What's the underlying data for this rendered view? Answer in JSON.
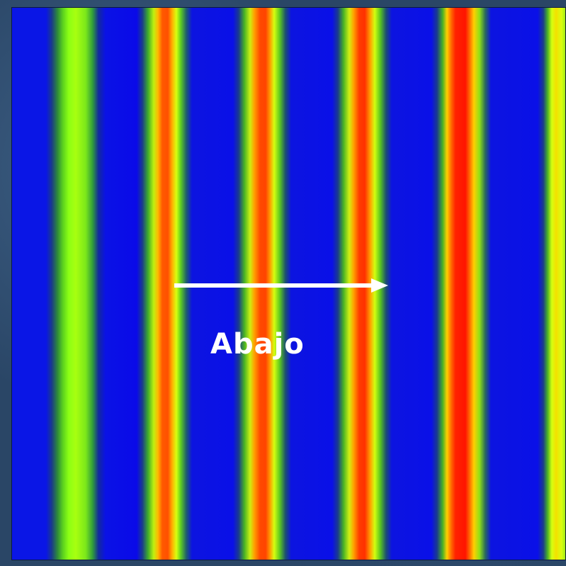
{
  "image": {
    "description_colors": {
      "background_frame": "#2a4666",
      "low": "#0a12e6",
      "mid_low": "#2e8a3a",
      "mid": "#8cff14",
      "mid_high": "#ffb800",
      "high": "#ff2200",
      "arrow": "#ffffff"
    },
    "direction_arrow": "right-arrow",
    "label": "Abajo"
  }
}
